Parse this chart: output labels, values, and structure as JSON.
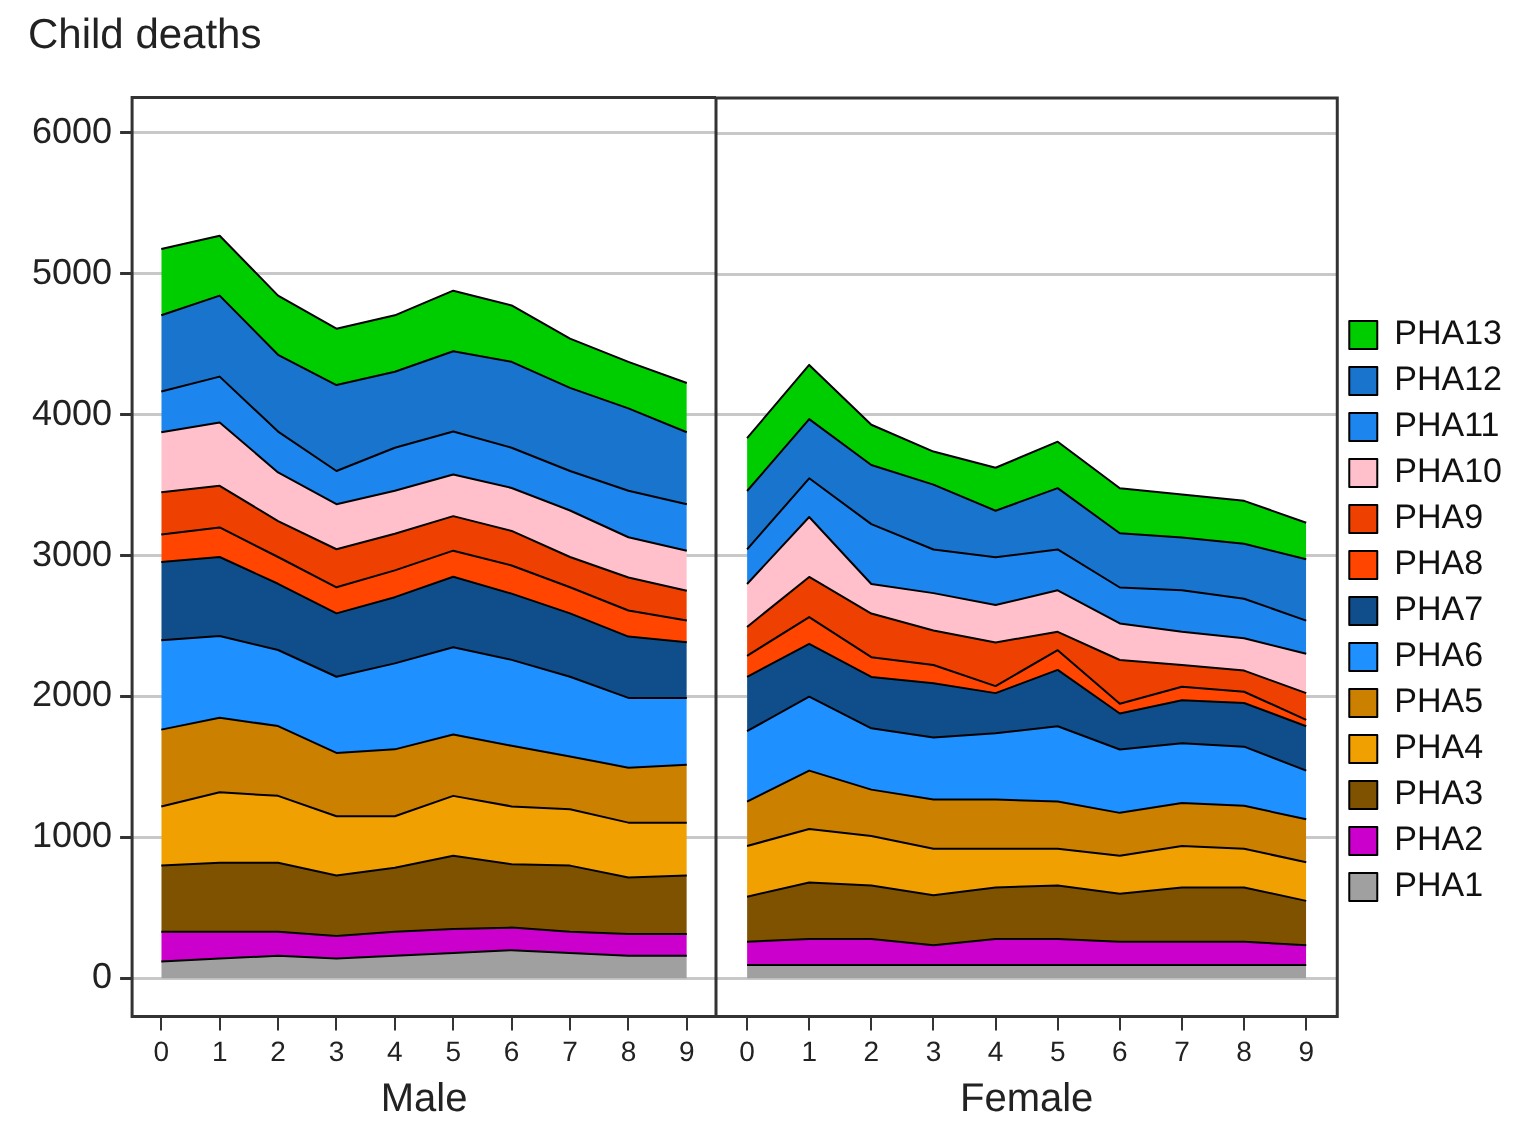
{
  "chart_data": [
    {
      "type": "area",
      "title": "Child deaths",
      "xlabel": "Male",
      "categories": [
        "0",
        "1",
        "2",
        "3",
        "4",
        "5",
        "6",
        "7",
        "8",
        "9"
      ],
      "stacked": true,
      "ylim": [
        -270,
        6250
      ],
      "yticks": [
        0,
        1000,
        2000,
        3000,
        4000,
        5000,
        6000
      ],
      "grid": "y",
      "legend": false,
      "series": [
        {
          "color": "#a0a0a0",
          "values": [
            120,
            140,
            160,
            140,
            160,
            180,
            200,
            180,
            160,
            160
          ]
        },
        {
          "color": "#cc00cc",
          "values": [
            210,
            190,
            170,
            160,
            170,
            170,
            160,
            150,
            155,
            155
          ]
        },
        {
          "color": "#7f5200",
          "values": [
            470,
            490,
            490,
            430,
            455,
            520,
            450,
            470,
            400,
            415
          ]
        },
        {
          "color": "#f0a000",
          "values": [
            420,
            500,
            475,
            420,
            365,
            425,
            410,
            400,
            390,
            375
          ]
        },
        {
          "color": "#cc8000",
          "values": [
            545,
            530,
            495,
            450,
            475,
            435,
            430,
            375,
            390,
            410
          ]
        },
        {
          "color": "#1e90ff",
          "values": [
            635,
            580,
            540,
            540,
            610,
            620,
            610,
            565,
            495,
            475
          ]
        },
        {
          "color": "#104e8b",
          "values": [
            555,
            560,
            470,
            450,
            470,
            500,
            470,
            450,
            435,
            395
          ]
        },
        {
          "color": "#ff4500",
          "values": [
            195,
            210,
            190,
            185,
            190,
            185,
            200,
            185,
            185,
            155
          ]
        },
        {
          "color": "#ee4000",
          "values": [
            300,
            295,
            255,
            270,
            260,
            245,
            245,
            215,
            235,
            210
          ]
        },
        {
          "color": "#ffc0cb",
          "values": [
            425,
            450,
            345,
            320,
            305,
            295,
            305,
            330,
            285,
            285
          ]
        },
        {
          "color": "#1c86ee",
          "values": [
            290,
            325,
            290,
            235,
            305,
            305,
            285,
            280,
            330,
            330
          ]
        },
        {
          "color": "#1874cd",
          "values": [
            540,
            575,
            545,
            610,
            540,
            570,
            610,
            590,
            585,
            510
          ]
        },
        {
          "color": "#00cd00",
          "values": [
            470,
            425,
            420,
            400,
            400,
            430,
            400,
            350,
            330,
            350
          ]
        }
      ]
    },
    {
      "type": "area",
      "xlabel": "Female",
      "categories": [
        "0",
        "1",
        "2",
        "3",
        "4",
        "5",
        "6",
        "7",
        "8",
        "9"
      ],
      "stacked": true,
      "ylim": [
        -270,
        6250
      ],
      "yticks": [
        0,
        1000,
        2000,
        3000,
        4000,
        5000,
        6000
      ],
      "grid": "y",
      "legend": "right",
      "tick_labels": "x",
      "series": [
        {
          "name": "PHA1",
          "color": "#a0a0a0",
          "values": [
            95,
            95,
            95,
            95,
            95,
            95,
            95,
            95,
            95,
            95
          ]
        },
        {
          "name": "PHA2",
          "color": "#cc00cc",
          "values": [
            165,
            185,
            185,
            140,
            185,
            185,
            165,
            165,
            165,
            140
          ]
        },
        {
          "name": "PHA3",
          "color": "#7f5200",
          "values": [
            320,
            400,
            380,
            355,
            365,
            380,
            340,
            385,
            385,
            315
          ]
        },
        {
          "name": "PHA4",
          "color": "#f0a000",
          "values": [
            360,
            380,
            350,
            330,
            275,
            260,
            270,
            295,
            275,
            275
          ]
        },
        {
          "name": "PHA5",
          "color": "#cc8000",
          "values": [
            315,
            415,
            330,
            350,
            350,
            335,
            305,
            305,
            305,
            305
          ]
        },
        {
          "name": "PHA6",
          "color": "#1e90ff",
          "values": [
            500,
            525,
            435,
            440,
            470,
            535,
            450,
            425,
            420,
            345
          ]
        },
        {
          "name": "PHA7",
          "color": "#104e8b",
          "values": [
            385,
            375,
            365,
            385,
            285,
            400,
            255,
            305,
            310,
            315
          ]
        },
        {
          "name": "PHA8",
          "color": "#ff4500",
          "values": [
            150,
            190,
            140,
            130,
            50,
            140,
            70,
            95,
            80,
            45
          ]
        },
        {
          "name": "PHA9",
          "color": "#ee4000",
          "values": [
            205,
            285,
            310,
            245,
            310,
            130,
            310,
            155,
            150,
            190
          ]
        },
        {
          "name": "PHA10",
          "color": "#ffc0cb",
          "values": [
            305,
            425,
            210,
            265,
            265,
            295,
            260,
            235,
            230,
            280
          ]
        },
        {
          "name": "PHA11",
          "color": "#1c86ee",
          "values": [
            245,
            275,
            425,
            310,
            340,
            290,
            255,
            295,
            280,
            235
          ]
        },
        {
          "name": "PHA12",
          "color": "#1874cd",
          "values": [
            415,
            420,
            420,
            460,
            330,
            435,
            385,
            375,
            390,
            435
          ]
        },
        {
          "name": "PHA13",
          "color": "#00cd00",
          "values": [
            375,
            385,
            285,
            235,
            305,
            330,
            320,
            305,
            305,
            260
          ]
        }
      ]
    }
  ]
}
